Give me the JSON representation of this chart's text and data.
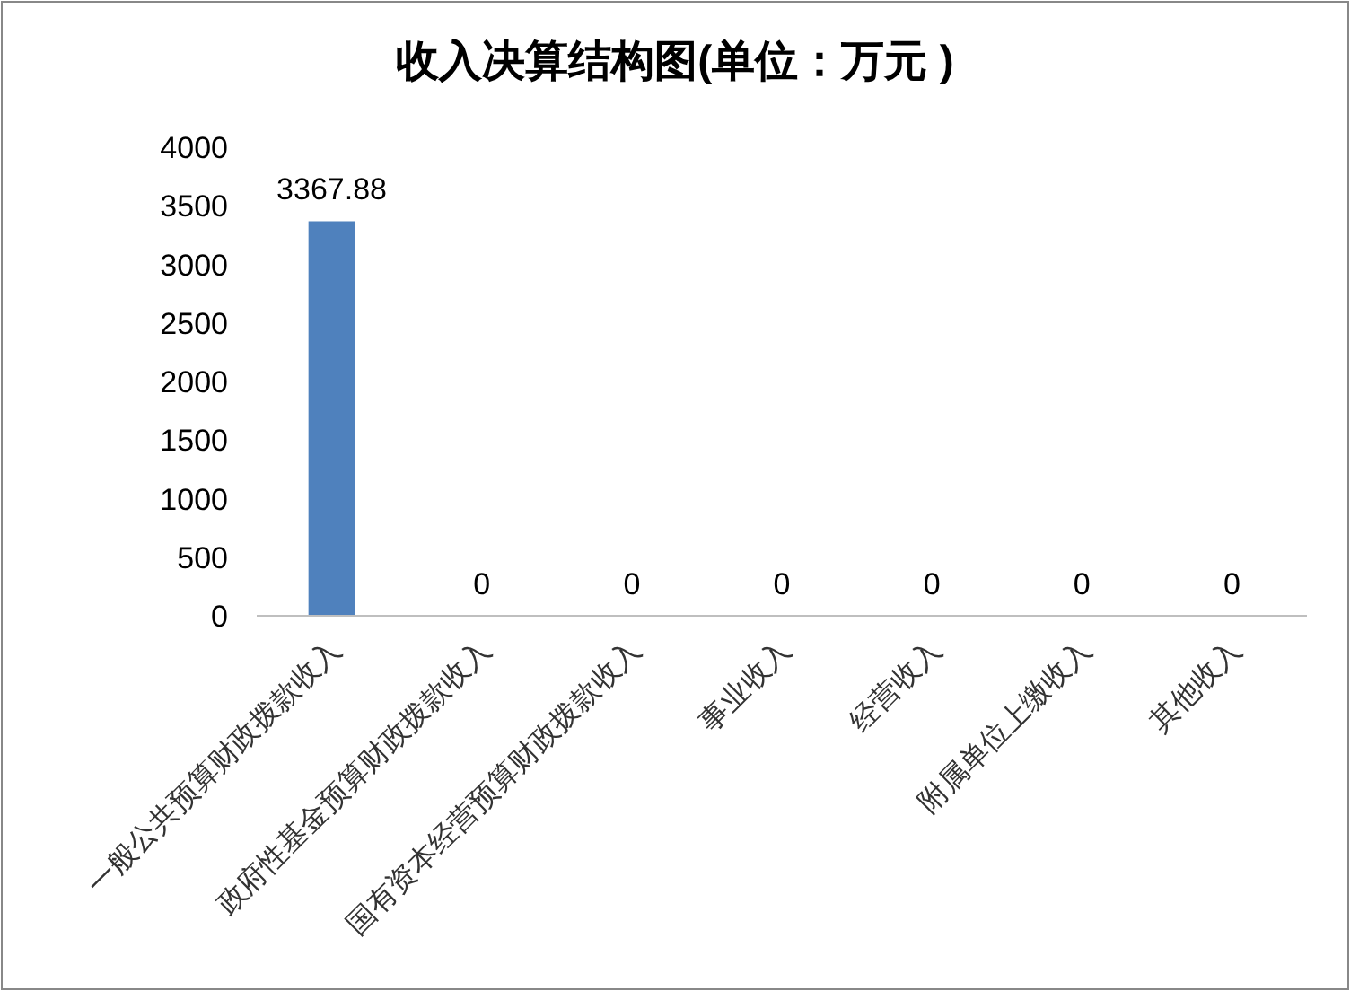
{
  "chart_data": {
    "type": "bar",
    "title": "收入决算结构图(单位：万元 )",
    "categories": [
      "一般公共预算财政拨款收入",
      "政府性基金预算财政拨款收入",
      "国有资本经营预算财政拨款收入",
      "事业收入",
      "经营收入",
      "附属单位上缴收入",
      "其他收入"
    ],
    "values": [
      3367.88,
      0,
      0,
      0,
      0,
      0,
      0
    ],
    "color": "#4f81bd",
    "ylim": [
      0,
      4000
    ],
    "yticks": [
      0,
      500,
      1000,
      1500,
      2000,
      2500,
      3000,
      3500,
      4000
    ],
    "data_labels": true,
    "grid": false
  }
}
